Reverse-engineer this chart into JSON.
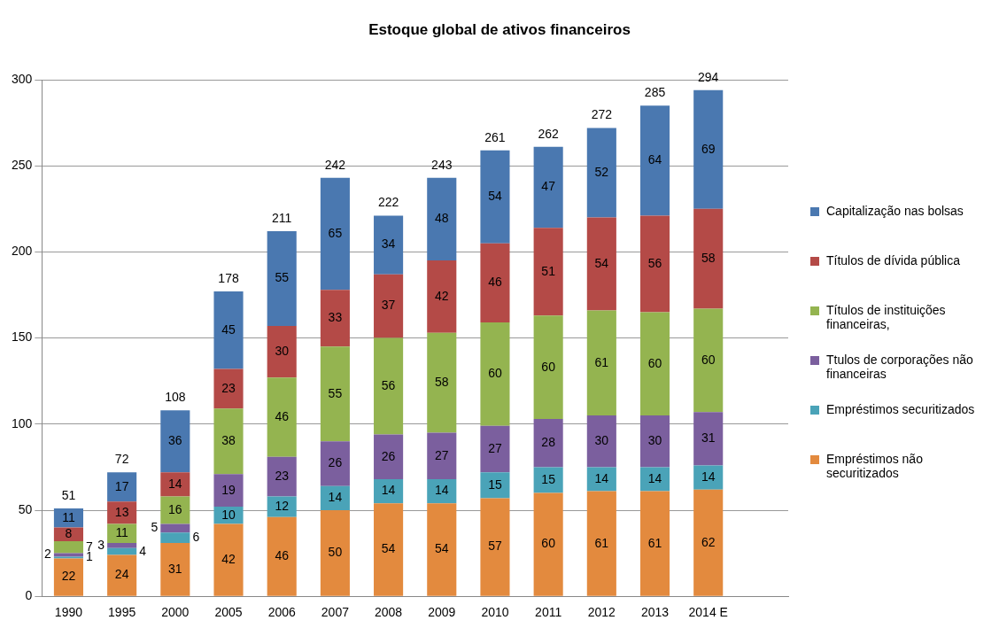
{
  "chart_data": {
    "type": "bar",
    "title": "Estoque global de ativos financeiros",
    "stacked": true,
    "categories": [
      "1990",
      "1995",
      "2000",
      "2005",
      "2006",
      "2007",
      "2008",
      "2009",
      "2010",
      "2011",
      "2012",
      "2013",
      "2014 E",
      null
    ],
    "series": [
      {
        "name": "Empréstimos não securitizados",
        "color": "#e38a3e",
        "values": [
          22,
          24,
          31,
          42,
          46,
          50,
          54,
          54,
          57,
          60,
          61,
          61,
          62,
          null
        ]
      },
      {
        "name": "Empréstimos securitizados",
        "color": "#4aa3b8",
        "values": [
          1,
          4,
          6,
          10,
          12,
          14,
          14,
          14,
          15,
          15,
          14,
          14,
          14,
          null
        ]
      },
      {
        "name": "Ttulos de corporações não financeiras",
        "color": "#7b5f9e",
        "values": [
          2,
          3,
          5,
          19,
          23,
          26,
          26,
          27,
          27,
          28,
          30,
          30,
          31,
          null
        ]
      },
      {
        "name": "Títulos de instituições financeiras,",
        "color": "#94b450",
        "values": [
          7,
          11,
          16,
          38,
          46,
          55,
          56,
          58,
          60,
          60,
          61,
          60,
          60,
          null
        ]
      },
      {
        "name": "Títulos de dívida pública",
        "color": "#b44a47",
        "values": [
          8,
          13,
          14,
          23,
          30,
          33,
          37,
          42,
          46,
          51,
          54,
          56,
          58,
          null
        ]
      },
      {
        "name": "Capitalização nas bolsas",
        "color": "#4a78b0",
        "values": [
          11,
          17,
          36,
          45,
          55,
          65,
          34,
          48,
          54,
          47,
          52,
          64,
          69,
          null
        ]
      }
    ],
    "totals": [
      "51",
      "72",
      "108",
      "178",
      "211",
      "242",
      "222",
      "243",
      "261",
      "262",
      "272",
      "285",
      "294",
      null
    ],
    "data_labels": true,
    "ylim": [
      0,
      300
    ],
    "yticks": [
      0,
      50,
      100,
      150,
      200,
      250,
      300
    ],
    "grid": "y",
    "legend": "right"
  }
}
